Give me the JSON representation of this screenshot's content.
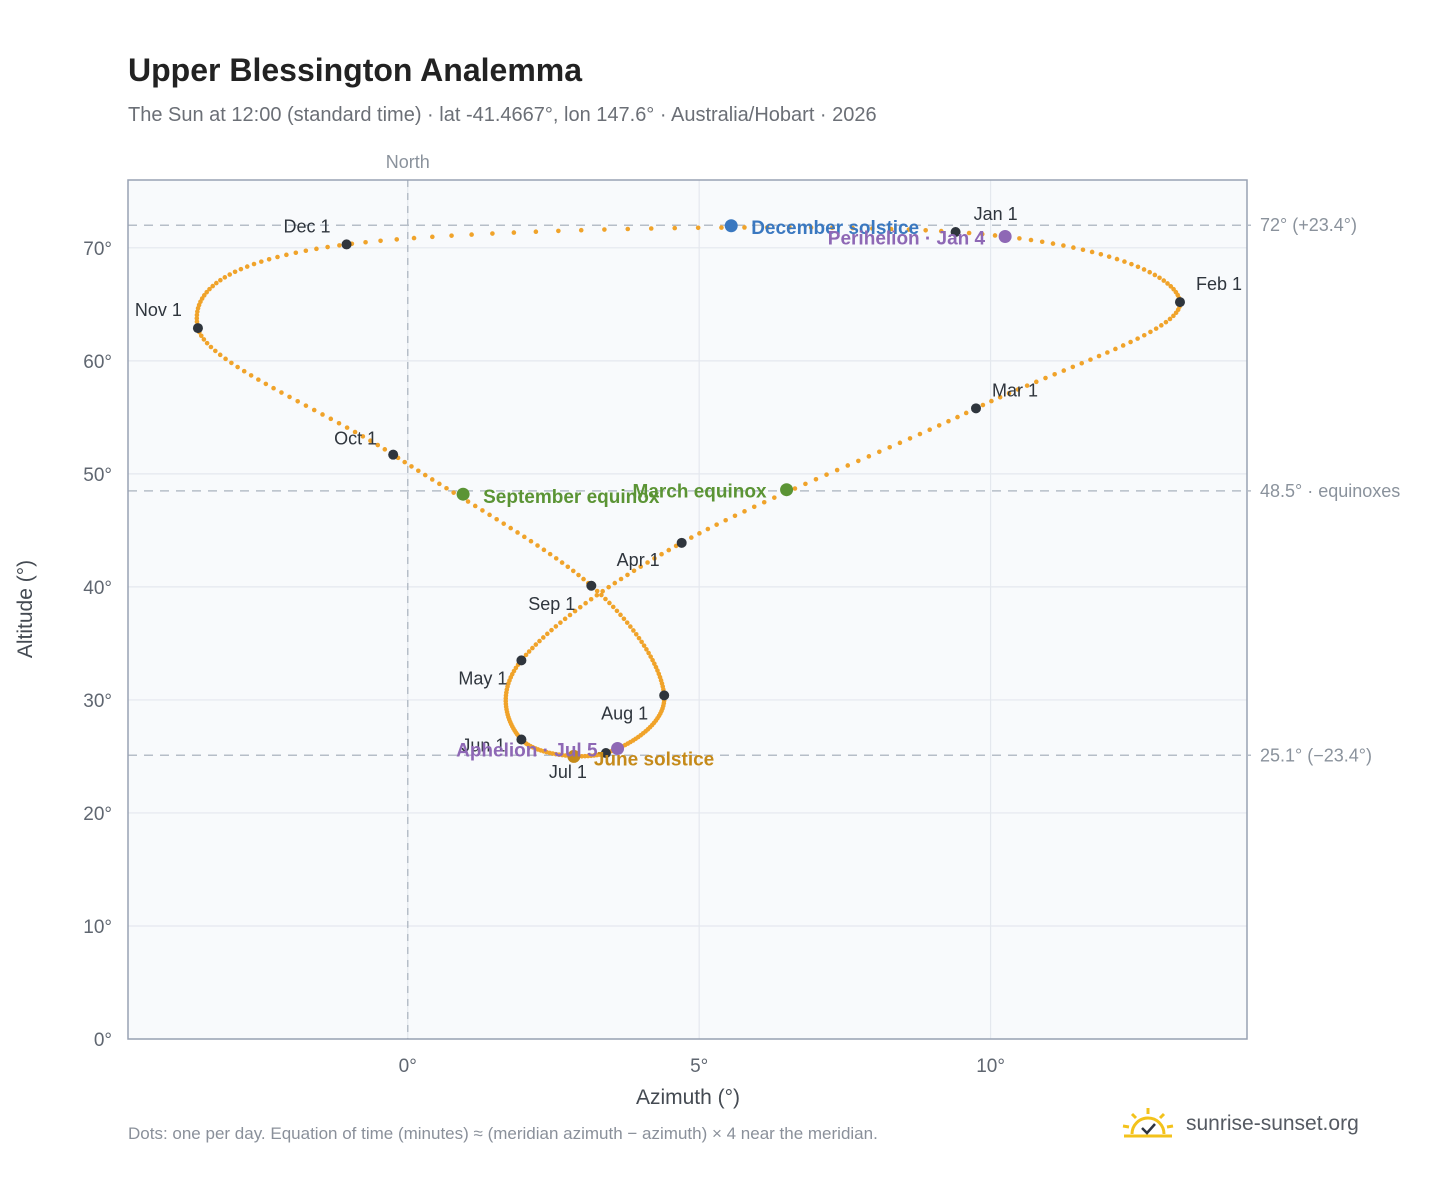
{
  "title": "Upper Blessington Analemma",
  "subtitle": "The Sun at 12:00 (standard time) · lat -41.4667°, lon 147.6° · Australia/Hobart · 2026",
  "footnote": "Dots: one per day. Equation of time (minutes) ≈ (meridian azimuth − azimuth) × 4 near the meridian.",
  "brand": {
    "text": "sunrise-sunset.org",
    "icon": "sun-logo-icon"
  },
  "chart_data": {
    "type": "scatter",
    "xlabel": "Azimuth (°)",
    "ylabel": "Altitude (°)",
    "xlim": [
      -4.8,
      14.4
    ],
    "ylim": [
      0,
      76
    ],
    "xticks": [
      0,
      5,
      10
    ],
    "xtick_labels": [
      "0°",
      "5°",
      "10°"
    ],
    "yticks": [
      0,
      10,
      20,
      30,
      40,
      50,
      60,
      70
    ],
    "ytick_labels": [
      "0°",
      "10°",
      "20°",
      "30°",
      "40°",
      "50°",
      "60°",
      "70°"
    ],
    "grid": true,
    "north_line": {
      "x": 0,
      "label": "North"
    },
    "reference_lines": [
      {
        "y": 72.0,
        "label": "72° (+23.4°)"
      },
      {
        "y": 48.5,
        "label": "48.5° · equinoxes"
      },
      {
        "y": 25.1,
        "label": "25.1° (−23.4°)"
      }
    ],
    "month_markers": [
      {
        "label": "Jan 1",
        "x": 9.4,
        "y": 71.4
      },
      {
        "label": "Feb 1",
        "x": 13.25,
        "y": 65.2
      },
      {
        "label": "Mar 1",
        "x": 9.75,
        "y": 55.8
      },
      {
        "label": "Apr 1",
        "x": 4.7,
        "y": 43.9
      },
      {
        "label": "May 1",
        "x": 1.95,
        "y": 33.5
      },
      {
        "label": "Jun 1",
        "x": 1.95,
        "y": 26.5
      },
      {
        "label": "Jul 1",
        "x": 3.4,
        "y": 25.3
      },
      {
        "label": "Aug 1",
        "x": 4.4,
        "y": 30.4
      },
      {
        "label": "Sep 1",
        "x": 3.15,
        "y": 40.1
      },
      {
        "label": "Oct 1",
        "x": -0.25,
        "y": 51.7
      },
      {
        "label": "Nov 1",
        "x": -3.6,
        "y": 62.9
      },
      {
        "label": "Dec 1",
        "x": -1.05,
        "y": 70.3
      }
    ],
    "events": [
      {
        "label": "December solstice",
        "x": 5.55,
        "y": 71.95,
        "color": "#3a78c0"
      },
      {
        "label": "Perihelion · Jan 4",
        "x": 10.25,
        "y": 71.0,
        "color": "#8e68b5"
      },
      {
        "label": "March equinox",
        "x": 6.5,
        "y": 48.6,
        "color": "#5b9435"
      },
      {
        "label": "September equinox",
        "x": 0.95,
        "y": 48.2,
        "color": "#5b9435"
      },
      {
        "label": "June solstice",
        "x": 2.85,
        "y": 25.0,
        "color": "#c58a1a"
      },
      {
        "label": "Aphelion · Jul 5",
        "x": 3.6,
        "y": 25.7,
        "color": "#8e68b5"
      }
    ],
    "curve_color": "#f0a32a",
    "dot_count": 365
  }
}
